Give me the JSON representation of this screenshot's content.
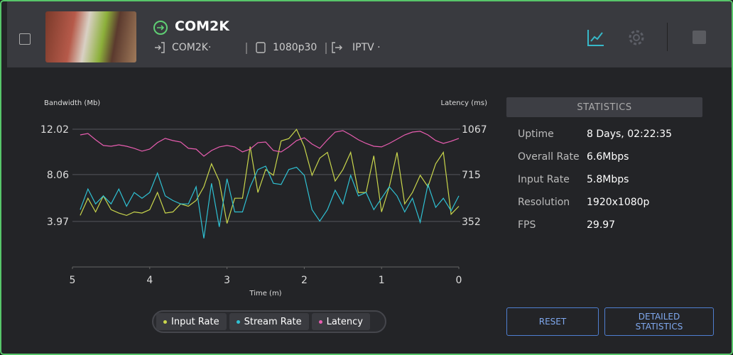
{
  "header": {
    "title": "COM2K",
    "source": "COM2K·",
    "resolution": "1080p30",
    "output": "IPTV ·"
  },
  "chart_data": {
    "type": "line",
    "y_label": "Bandwidth (Mb)",
    "y2_label": "Latency (ms)",
    "x_label": "Time (m)",
    "x": [
      4.9,
      4.8,
      4.7,
      4.6,
      4.5,
      4.4,
      4.3,
      4.2,
      4.1,
      4.0,
      3.9,
      3.8,
      3.7,
      3.6,
      3.5,
      3.4,
      3.3,
      3.2,
      3.1,
      3.0,
      2.9,
      2.8,
      2.7,
      2.6,
      2.5,
      2.4,
      2.3,
      2.2,
      2.1,
      2.0,
      1.9,
      1.8,
      1.7,
      1.6,
      1.5,
      1.4,
      1.3,
      1.2,
      1.1,
      1.0,
      0.9,
      0.8,
      0.7,
      0.6,
      0.5,
      0.4,
      0.3,
      0.2,
      0.1,
      0
    ],
    "xlim": [
      5,
      0
    ],
    "xticks": [
      5,
      4,
      3,
      2,
      1,
      0
    ],
    "ylim": [
      0,
      12.02
    ],
    "yticks": [
      3.97,
      8.06,
      12.02
    ],
    "y2lim": [
      0,
      1067
    ],
    "y2ticks": [
      352,
      715,
      1067
    ],
    "grid": true,
    "series": [
      {
        "name": "Input Rate",
        "color": "#c9d64c",
        "values": [
          4.5,
          6,
          4.8,
          6.2,
          5,
          4.7,
          4.5,
          4.8,
          4.7,
          5,
          6.5,
          4.7,
          4.8,
          5.5,
          5.3,
          5.8,
          7,
          9,
          7.5,
          3.8,
          6,
          6,
          10.5,
          6.5,
          8.5,
          8,
          11,
          11.2,
          12,
          10.5,
          8,
          9.5,
          10,
          7.5,
          8.5,
          10,
          6.5,
          6.5,
          9.7,
          4.8,
          7,
          10,
          5.5,
          6.5,
          8,
          7,
          9,
          10,
          4.6,
          5.3
        ]
      },
      {
        "name": "Stream Rate",
        "color": "#2fc1d3",
        "values": [
          5,
          6.8,
          5.5,
          6.2,
          5.5,
          6.8,
          5.3,
          6.5,
          6,
          6.5,
          8.2,
          6.2,
          5.8,
          5.5,
          5.5,
          7,
          2.5,
          7.3,
          3.5,
          7.7,
          4.8,
          4.8,
          7,
          8.5,
          8.8,
          7.3,
          7.2,
          8.5,
          8.7,
          8,
          5,
          4,
          5,
          6.7,
          5.5,
          8,
          6.2,
          6.5,
          5,
          6,
          7,
          6.2,
          4.8,
          6,
          3.9,
          7.2,
          5.2,
          6,
          4.9,
          6.2
        ]
      },
      {
        "name": "Latency",
        "color": "#e85db0",
        "axis": "y2",
        "values": [
          1023,
          1034,
          985,
          941,
          935,
          946,
          935,
          919,
          897,
          913,
          963,
          996,
          979,
          968,
          919,
          913,
          858,
          902,
          930,
          941,
          930,
          891,
          913,
          963,
          968,
          902,
          891,
          930,
          979,
          1001,
          952,
          919,
          985,
          1045,
          1056,
          1023,
          985,
          957,
          935,
          930,
          957,
          990,
          1023,
          1045,
          1051,
          1023,
          979,
          957,
          974,
          996
        ]
      }
    ]
  },
  "statistics": {
    "title": "STATISTICS",
    "rows": [
      [
        "Uptime",
        "8 Days, 02:22:35"
      ],
      [
        "Overall Rate",
        "6.6Mbps"
      ],
      [
        "Input Rate",
        "5.8Mbps"
      ],
      [
        "Resolution",
        "1920x1080p"
      ],
      [
        "FPS",
        "29.97"
      ]
    ]
  },
  "buttons": {
    "reset": "RESET",
    "detailed": "DETAILED STATISTICS"
  }
}
